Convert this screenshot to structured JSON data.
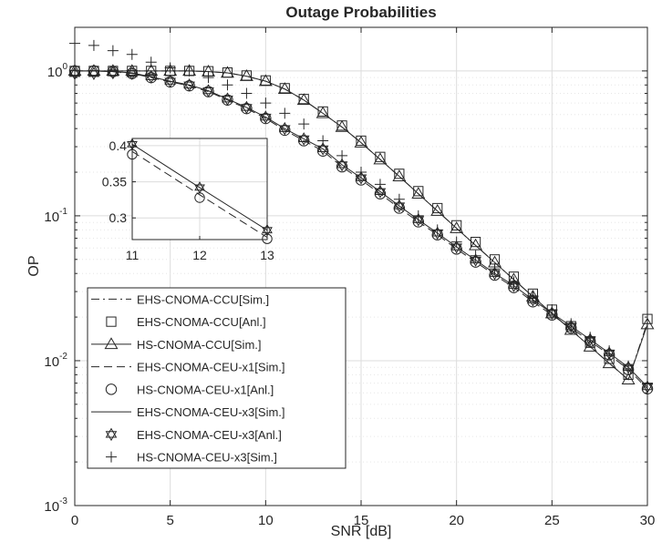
{
  "chart_data": {
    "type": "line",
    "title": "Outage Probabilities",
    "xlabel": "SNR [dB]",
    "ylabel": "OP",
    "xlim": [
      0,
      30
    ],
    "ylim": [
      0.001,
      2
    ],
    "yscale": "log",
    "grid": true,
    "legend_position": "bottom-left",
    "x_ticks": [
      "0",
      "5",
      "10",
      "15",
      "20",
      "25",
      "30"
    ],
    "y_ticks": [
      {
        "value": 0.001,
        "base": "10",
        "exp": "-3"
      },
      {
        "value": 0.01,
        "base": "10",
        "exp": "-2"
      },
      {
        "value": 0.1,
        "base": "10",
        "exp": "-1"
      },
      {
        "value": 1,
        "base": "10",
        "exp": "0"
      }
    ],
    "x": [
      0,
      1,
      2,
      3,
      4,
      5,
      6,
      7,
      8,
      9,
      10,
      11,
      12,
      13,
      14,
      15,
      16,
      17,
      18,
      19,
      20,
      21,
      22,
      23,
      24,
      25,
      26,
      27,
      28,
      29,
      30
    ],
    "series": [
      {
        "name": "EHS-CNOMA-CCU[Sim.]",
        "line": "dashdot",
        "marker": "none",
        "values": [
          1.0,
          1.0,
          1.0,
          1.0,
          1.0,
          1.0,
          1.0,
          0.99,
          0.97,
          0.92,
          0.85,
          0.75,
          0.63,
          0.51,
          0.41,
          0.32,
          0.245,
          0.187,
          0.142,
          0.108,
          0.082,
          0.0625,
          0.0476,
          0.0363,
          0.0277,
          0.0212,
          0.0163,
          0.0125,
          0.0096,
          0.0074,
          0.0184
        ]
      },
      {
        "name": "EHS-CNOMA-CCU[Anl.]",
        "line": "none",
        "marker": "square",
        "values": [
          1.0,
          1.0,
          1.0,
          1.0,
          1.0,
          1.0,
          1.0,
          0.995,
          0.975,
          0.93,
          0.86,
          0.76,
          0.64,
          0.525,
          0.42,
          0.33,
          0.255,
          0.195,
          0.148,
          0.113,
          0.086,
          0.066,
          0.05,
          0.038,
          0.029,
          0.0225,
          0.0173,
          0.0133,
          0.0103,
          0.008,
          0.0194
        ]
      },
      {
        "name": "HS-CNOMA-CCU[Sim.]",
        "line": "solid",
        "marker": "triangle",
        "values": [
          1.0,
          1.0,
          1.0,
          1.0,
          1.0,
          1.0,
          1.0,
          0.99,
          0.97,
          0.92,
          0.85,
          0.75,
          0.63,
          0.51,
          0.41,
          0.32,
          0.245,
          0.187,
          0.142,
          0.108,
          0.082,
          0.0625,
          0.0476,
          0.0363,
          0.0277,
          0.0212,
          0.0163,
          0.0125,
          0.0096,
          0.0074,
          0.0178
        ]
      },
      {
        "name": "EHS-CNOMA-CEU-x1[Sim.]",
        "line": "dashed",
        "marker": "none",
        "values": [
          1.0,
          1.0,
          0.99,
          0.96,
          0.9,
          0.84,
          0.79,
          0.72,
          0.63,
          0.55,
          0.47,
          0.39,
          0.33,
          0.28,
          0.218,
          0.177,
          0.142,
          0.113,
          0.091,
          0.074,
          0.059,
          0.048,
          0.039,
          0.032,
          0.0255,
          0.0207,
          0.0168,
          0.0136,
          0.011,
          0.0087,
          0.0064
        ]
      },
      {
        "name": "HS-CNOMA-CEU-x1[Anl.]",
        "line": "none",
        "marker": "circle",
        "values": [
          1.0,
          1.0,
          0.99,
          0.96,
          0.9,
          0.84,
          0.79,
          0.72,
          0.63,
          0.55,
          0.47,
          0.39,
          0.33,
          0.28,
          0.218,
          0.177,
          0.142,
          0.113,
          0.091,
          0.074,
          0.059,
          0.048,
          0.039,
          0.032,
          0.0255,
          0.0207,
          0.0168,
          0.0136,
          0.011,
          0.0087,
          0.0064
        ]
      },
      {
        "name": "EHS-CNOMA-CEU-x3[Sim.]",
        "line": "solid",
        "marker": "none",
        "values": [
          1.0,
          1.0,
          0.99,
          0.97,
          0.91,
          0.85,
          0.8,
          0.73,
          0.64,
          0.56,
          0.48,
          0.4,
          0.34,
          0.29,
          0.225,
          0.183,
          0.147,
          0.117,
          0.094,
          0.076,
          0.061,
          0.0495,
          0.04,
          0.033,
          0.0263,
          0.0213,
          0.0173,
          0.014,
          0.0113,
          0.009,
          0.0066
        ]
      },
      {
        "name": "EHS-CNOMA-CEU-x3[Anl.]",
        "line": "none",
        "marker": "hexagram",
        "values": [
          0.96,
          0.96,
          0.97,
          0.96,
          0.91,
          0.85,
          0.8,
          0.73,
          0.64,
          0.56,
          0.48,
          0.4,
          0.34,
          0.29,
          0.225,
          0.183,
          0.147,
          0.117,
          0.094,
          0.076,
          0.061,
          0.0495,
          0.04,
          0.033,
          0.0263,
          0.0213,
          0.0173,
          0.014,
          0.0113,
          0.009,
          0.0066
        ]
      },
      {
        "name": "HS-CNOMA-CEU-x3[Sim.]",
        "line": "none",
        "marker": "plus",
        "values": [
          1.55,
          1.5,
          1.38,
          1.3,
          1.15,
          1.05,
          1.0,
          0.9,
          0.8,
          0.7,
          0.6,
          0.51,
          0.43,
          0.33,
          0.26,
          0.2,
          0.165,
          0.13,
          0.1,
          0.08,
          0.066,
          0.053,
          0.043,
          0.035,
          0.028,
          0.0225,
          0.018,
          0.0145,
          0.0117,
          0.0092,
          0.007
        ]
      }
    ],
    "inset": {
      "xlim": [
        11,
        13
      ],
      "ylim": [
        0.27,
        0.41
      ],
      "x_ticks": [
        "11",
        "12",
        "13"
      ],
      "y_ticks": [
        "0.3",
        "0.35",
        "0.4"
      ],
      "x": [
        11,
        12,
        13
      ],
      "upper_line": [
        0.402,
        0.342,
        0.283
      ],
      "lower_line": [
        0.392,
        0.332,
        0.273
      ],
      "circle_markers": [
        0.388,
        0.328,
        0.271
      ],
      "hexagram_markers": [
        0.402,
        0.342,
        0.283
      ]
    }
  }
}
